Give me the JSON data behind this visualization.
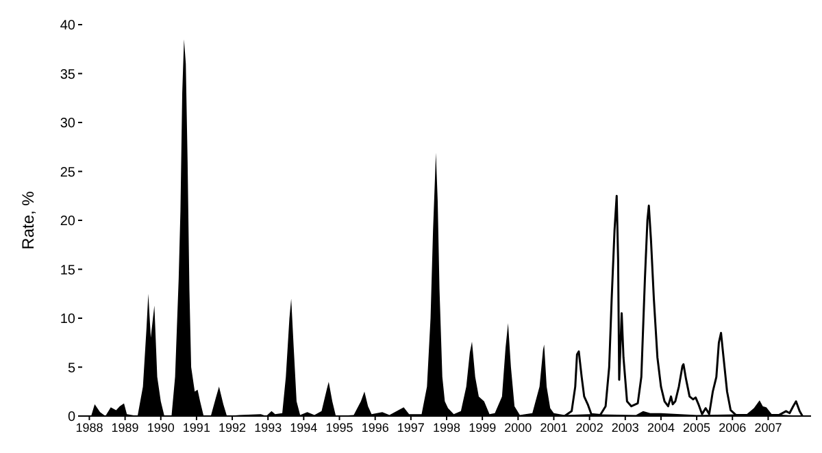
{
  "chart_data": {
    "type": "area",
    "ylabel": "Rate, %",
    "xlim": [
      1987.8,
      2008.2
    ],
    "xticks": [
      {
        "value": 1988,
        "label": "1988"
      },
      {
        "value": 1989,
        "label": "1989"
      },
      {
        "value": 1990,
        "label": "1990"
      },
      {
        "value": 1991,
        "label": "1991"
      },
      {
        "value": 1992,
        "label": "1992"
      },
      {
        "value": 1993,
        "label": "1993"
      },
      {
        "value": 1994,
        "label": "1994"
      },
      {
        "value": 1995,
        "label": "1995"
      },
      {
        "value": 1996,
        "label": "1996"
      },
      {
        "value": 1997,
        "label": "1997"
      },
      {
        "value": 1998,
        "label": "1998"
      },
      {
        "value": 1999,
        "label": "1999"
      },
      {
        "value": 2000,
        "label": "2000"
      },
      {
        "value": 2001,
        "label": "2001"
      },
      {
        "value": 2002,
        "label": "2002"
      },
      {
        "value": 2003,
        "label": "2003"
      },
      {
        "value": 2004,
        "label": "2004"
      },
      {
        "value": 2005,
        "label": "2005"
      },
      {
        "value": 2006,
        "label": "2006"
      },
      {
        "value": 2007,
        "label": "2007"
      }
    ],
    "ylim": [
      0,
      40
    ],
    "yticks": [
      0,
      5,
      10,
      15,
      20,
      25,
      30,
      35,
      40
    ],
    "grid": false,
    "legend": false,
    "series": [
      {
        "color": "#000000",
        "x": [
          1987.85,
          1988.05,
          1988.15,
          1988.3,
          1988.45,
          1988.6,
          1988.75,
          1988.85,
          1988.97,
          1989.05,
          1989.35,
          1989.5,
          1989.6,
          1989.65,
          1989.72,
          1989.78,
          1989.82,
          1989.9,
          1990.0,
          1990.1,
          1990.3,
          1990.4,
          1990.5,
          1990.55,
          1990.6,
          1990.65,
          1990.7,
          1990.75,
          1990.8,
          1990.85,
          1990.95,
          1991.03,
          1991.1,
          1991.2,
          1991.4,
          1991.55,
          1991.63,
          1991.75,
          1991.85,
          1992.2,
          1992.8,
          1992.95,
          1993.1,
          1993.2,
          1993.4,
          1993.5,
          1993.6,
          1993.65,
          1993.72,
          1993.8,
          1993.9,
          1994.1,
          1994.3,
          1994.5,
          1994.65,
          1994.7,
          1994.8,
          1994.9,
          1995.4,
          1995.6,
          1995.7,
          1995.8,
          1995.9,
          1996.2,
          1996.4,
          1996.7,
          1996.8,
          1996.95,
          1997.3,
          1997.45,
          1997.55,
          1997.62,
          1997.7,
          1997.75,
          1997.8,
          1997.88,
          1997.95,
          1998.04,
          1998.2,
          1998.4,
          1998.55,
          1998.65,
          1998.71,
          1998.8,
          1998.9,
          1999.05,
          1999.2,
          1999.35,
          1999.55,
          1999.65,
          1999.72,
          1999.8,
          1999.9,
          2000.05,
          2000.4,
          2000.6,
          2000.7,
          2000.73,
          2000.8,
          2000.9,
          2001.0,
          2001.3,
          2002.0,
          2003.3,
          2003.5,
          2003.7,
          2004.0,
          2005.0,
          2006.4,
          2006.6,
          2006.76,
          2006.85,
          2006.95,
          2007.1,
          2007.5,
          2008.0
        ],
        "values": [
          0,
          0,
          1.2,
          0.4,
          0,
          0.9,
          0.6,
          1.0,
          1.3,
          0.2,
          0,
          3,
          9,
          12.5,
          8,
          10,
          11.3,
          4,
          1.5,
          0,
          0,
          4,
          14,
          21,
          33,
          38.5,
          36,
          26,
          13,
          5,
          2.5,
          2.7,
          1.5,
          0,
          0,
          2,
          3,
          1.2,
          0,
          0.1,
          0.2,
          0,
          0.5,
          0.2,
          0.3,
          4,
          10,
          12,
          7,
          1.5,
          0.1,
          0.4,
          0.1,
          0.5,
          2.8,
          3.5,
          1.5,
          0,
          0.1,
          1.5,
          2.5,
          1.0,
          0.2,
          0.4,
          0.1,
          0.7,
          0.9,
          0.2,
          0.2,
          3,
          10,
          19,
          26.9,
          22,
          13,
          4,
          1.5,
          0.8,
          0.2,
          0.5,
          3,
          6.5,
          7.6,
          4,
          2,
          1.5,
          0.2,
          0.3,
          2,
          7,
          9.5,
          5,
          1,
          0.1,
          0.3,
          3,
          6.8,
          7.3,
          3,
          0.8,
          0.3,
          0.1,
          0.2,
          0.1,
          0.5,
          0.3,
          0.3,
          0.1,
          0.2,
          0.8,
          1.6,
          1.0,
          0.9,
          0.2,
          0.1,
          0
        ]
      },
      {
        "type": "line",
        "color": "#000000",
        "x": [
          2001.3,
          2001.5,
          2001.6,
          2001.65,
          2001.7,
          2001.78,
          2001.85,
          2001.95,
          2002.05,
          2002.3,
          2002.45,
          2002.55,
          2002.62,
          2002.7,
          2002.76,
          2002.8,
          2002.83,
          2002.9,
          2002.95,
          2003.05,
          2003.17,
          2003.35,
          2003.45,
          2003.55,
          2003.62,
          2003.66,
          2003.72,
          2003.8,
          2003.9,
          2004.0,
          2004.1,
          2004.2,
          2004.28,
          2004.33,
          2004.4,
          2004.5,
          2004.6,
          2004.63,
          2004.7,
          2004.8,
          2004.9,
          2004.97,
          2005.05,
          2005.15,
          2005.25,
          2005.35,
          2005.45,
          2005.55,
          2005.62,
          2005.68,
          2005.75,
          2005.85,
          2005.95,
          2006.1,
          2006.5,
          2007.3,
          2007.5,
          2007.6,
          2007.7,
          2007.78,
          2007.88,
          2007.96
        ],
        "values": [
          0,
          0.5,
          3,
          6.3,
          6.6,
          4,
          2,
          1.2,
          0.2,
          0.1,
          1,
          5,
          12,
          19,
          22.5,
          16,
          3.7,
          10.5,
          6,
          1.5,
          1.0,
          1.3,
          4,
          14,
          20,
          21.5,
          18,
          12,
          6,
          3,
          1.5,
          1.0,
          2,
          1.2,
          1.5,
          3,
          5.1,
          5.3,
          3.8,
          2,
          1.7,
          1.9,
          1.2,
          0.2,
          0.8,
          0.2,
          2.5,
          4,
          7.5,
          8.5,
          6,
          2.5,
          0.6,
          0.1,
          0.1,
          0.1,
          0.5,
          0.3,
          1.0,
          1.5,
          0.5,
          0
        ]
      }
    ]
  }
}
